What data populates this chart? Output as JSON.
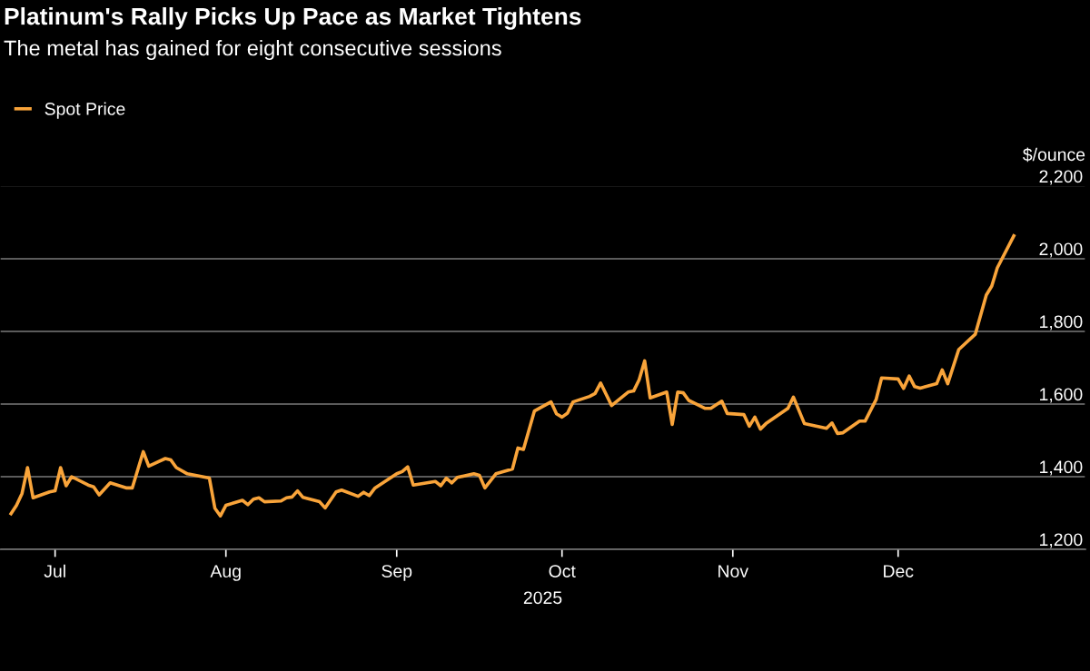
{
  "chart_data": {
    "type": "line",
    "title": "Platinum's Rally Picks Up Pace as Market Tightens",
    "subtitle": "The metal has gained for eight consecutive sessions",
    "xlabel": "2025",
    "ylabel": "$/ounce",
    "xlim": [
      "2025-06-21",
      "2026-01-04"
    ],
    "xticks": [
      {
        "value": "2025-07-01",
        "label": "Jul"
      },
      {
        "value": "2025-08-01",
        "label": "Aug"
      },
      {
        "value": "2025-09-01",
        "label": "Sep"
      },
      {
        "value": "2025-10-01",
        "label": "Oct"
      },
      {
        "value": "2025-11-01",
        "label": "Nov"
      },
      {
        "value": "2025-12-01",
        "label": "Dec"
      }
    ],
    "ylim": [
      1200,
      2200
    ],
    "yticks": [
      {
        "value": 1200,
        "label": "1,200"
      },
      {
        "value": 1400,
        "label": "1,400"
      },
      {
        "value": 1600,
        "label": "1,600"
      },
      {
        "value": 1800,
        "label": "1,800"
      },
      {
        "value": 2000,
        "label": "2,000"
      },
      {
        "value": 2200,
        "label": "2,200"
      }
    ],
    "grid": "y",
    "legend": "top left",
    "marker": "none",
    "line_style": "solid",
    "x": [
      "2025-06-23",
      "2025-06-24",
      "2025-06-25",
      "2025-06-26",
      "2025-06-27",
      "2025-06-30",
      "2025-07-01",
      "2025-07-02",
      "2025-07-03",
      "2025-07-04",
      "2025-07-07",
      "2025-07-08",
      "2025-07-09",
      "2025-07-11",
      "2025-07-14",
      "2025-07-15",
      "2025-07-17",
      "2025-07-18",
      "2025-07-21",
      "2025-07-22",
      "2025-07-23",
      "2025-07-25",
      "2025-07-29",
      "2025-07-30",
      "2025-07-31",
      "2025-08-01",
      "2025-08-04",
      "2025-08-05",
      "2025-08-06",
      "2025-08-07",
      "2025-08-08",
      "2025-08-11",
      "2025-08-12",
      "2025-08-13",
      "2025-08-14",
      "2025-08-15",
      "2025-08-18",
      "2025-08-19",
      "2025-08-21",
      "2025-08-22",
      "2025-08-25",
      "2025-08-26",
      "2025-08-27",
      "2025-08-28",
      "2025-09-01",
      "2025-09-02",
      "2025-09-03",
      "2025-09-04",
      "2025-09-08",
      "2025-09-09",
      "2025-09-10",
      "2025-09-11",
      "2025-09-12",
      "2025-09-15",
      "2025-09-16",
      "2025-09-17",
      "2025-09-19",
      "2025-09-22",
      "2025-09-23",
      "2025-09-24",
      "2025-09-26",
      "2025-09-29",
      "2025-09-30",
      "2025-10-01",
      "2025-10-02",
      "2025-10-03",
      "2025-10-06",
      "2025-10-07",
      "2025-10-08",
      "2025-10-10",
      "2025-10-13",
      "2025-10-14",
      "2025-10-15",
      "2025-10-16",
      "2025-10-17",
      "2025-10-20",
      "2025-10-21",
      "2025-10-22",
      "2025-10-23",
      "2025-10-24",
      "2025-10-27",
      "2025-10-28",
      "2025-10-30",
      "2025-10-31",
      "2025-11-03",
      "2025-11-04",
      "2025-11-05",
      "2025-11-06",
      "2025-11-07",
      "2025-11-11",
      "2025-11-12",
      "2025-11-14",
      "2025-11-18",
      "2025-11-19",
      "2025-11-20",
      "2025-11-21",
      "2025-11-24",
      "2025-11-25",
      "2025-11-27",
      "2025-11-28",
      "2025-12-01",
      "2025-12-02",
      "2025-12-03",
      "2025-12-04",
      "2025-12-05",
      "2025-12-08",
      "2025-12-09",
      "2025-12-10",
      "2025-12-12",
      "2025-12-15",
      "2025-12-17",
      "2025-12-18",
      "2025-12-19",
      "2025-12-22"
    ],
    "series": [
      {
        "name": "Spot Price",
        "color": "#f9a43a",
        "values": [
          1298,
          1321,
          1354,
          1425,
          1342,
          1358,
          1361,
          1425,
          1375,
          1400,
          1377,
          1372,
          1350,
          1383,
          1369,
          1369,
          1469,
          1429,
          1450,
          1446,
          1425,
          1408,
          1396,
          1313,
          1292,
          1321,
          1335,
          1323,
          1338,
          1342,
          1331,
          1333,
          1342,
          1344,
          1361,
          1343,
          1331,
          1314,
          1358,
          1363,
          1346,
          1357,
          1348,
          1368,
          1408,
          1414,
          1427,
          1377,
          1387,
          1375,
          1396,
          1383,
          1398,
          1408,
          1404,
          1369,
          1408,
          1421,
          1479,
          1475,
          1581,
          1606,
          1573,
          1564,
          1575,
          1606,
          1621,
          1629,
          1658,
          1596,
          1633,
          1636,
          1667,
          1719,
          1617,
          1633,
          1544,
          1633,
          1631,
          1610,
          1588,
          1588,
          1608,
          1574,
          1571,
          1539,
          1564,
          1531,
          1546,
          1588,
          1619,
          1546,
          1533,
          1548,
          1519,
          1521,
          1553,
          1553,
          1612,
          1672,
          1669,
          1643,
          1677,
          1648,
          1644,
          1656,
          1694,
          1656,
          1750,
          1792,
          1900,
          1925,
          1975,
          2063
        ]
      }
    ]
  }
}
